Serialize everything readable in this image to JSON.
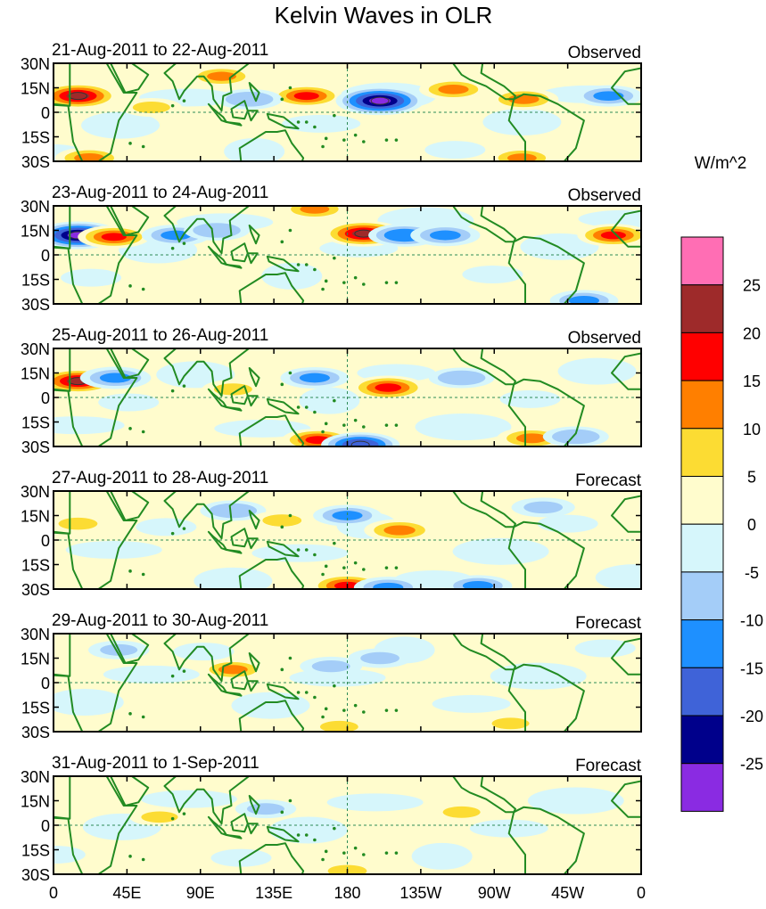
{
  "chart_data": {
    "type": "heatmap",
    "title": "Kelvin Waves in OLR",
    "units": "W/m^2",
    "x_range": [
      0,
      360
    ],
    "y_range": [
      -30,
      30
    ],
    "lon_ticks": [
      {
        "value": 0,
        "label": "0"
      },
      {
        "value": 45,
        "label": "45E"
      },
      {
        "value": 90,
        "label": "90E"
      },
      {
        "value": 135,
        "label": "135E"
      },
      {
        "value": 180,
        "label": "180"
      },
      {
        "value": 225,
        "label": "135W"
      },
      {
        "value": 270,
        "label": "90W"
      },
      {
        "value": 315,
        "label": "45W"
      },
      {
        "value": 360,
        "label": "0"
      }
    ],
    "lat_ticks": [
      {
        "value": 30,
        "label": "30N"
      },
      {
        "value": 15,
        "label": "15N"
      },
      {
        "value": 0,
        "label": "0"
      },
      {
        "value": -15,
        "label": "15S"
      },
      {
        "value": -30,
        "label": "30S"
      }
    ],
    "colorbar": {
      "colors": [
        "#8a2be2",
        "#00008b",
        "#3f63d8",
        "#1e90ff",
        "#a4cdf8",
        "#d6f6fb",
        "#fffccd",
        "#fcdc33",
        "#ff7f00",
        "#ff0000",
        "#9e2a2a",
        "#ff6eb4"
      ],
      "labels": [
        "25",
        "20",
        "15",
        "10",
        "5",
        "0",
        "-5",
        "-10",
        "-15",
        "-20",
        "-25"
      ]
    },
    "panels": [
      {
        "period": "21-Aug-2011 to 22-Aug-2011",
        "kind": "Observed",
        "features": [
          {
            "lon": 15,
            "lat": 10,
            "value": 22
          },
          {
            "lon": 22,
            "lat": -28,
            "value": 12
          },
          {
            "lon": 103,
            "lat": 22,
            "value": 10
          },
          {
            "lon": 155,
            "lat": 10,
            "value": 15
          },
          {
            "lon": 200,
            "lat": 7,
            "value": -28
          },
          {
            "lon": 245,
            "lat": 14,
            "value": 12
          },
          {
            "lon": 288,
            "lat": 8,
            "value": 13
          },
          {
            "lon": 287,
            "lat": -28,
            "value": 10
          },
          {
            "lon": 340,
            "lat": 10,
            "value": -12
          },
          {
            "lon": 120,
            "lat": 8,
            "value": -10
          },
          {
            "lon": 60,
            "lat": 3,
            "value": 6
          }
        ]
      },
      {
        "period": "23-Aug-2011 to 24-Aug-2011",
        "kind": "Observed",
        "features": [
          {
            "lon": 15,
            "lat": 12,
            "value": -26
          },
          {
            "lon": 37,
            "lat": 11,
            "value": 15
          },
          {
            "lon": 75,
            "lat": 12,
            "value": -12
          },
          {
            "lon": 100,
            "lat": 15,
            "value": -10
          },
          {
            "lon": 190,
            "lat": 13,
            "value": 22
          },
          {
            "lon": 215,
            "lat": 12,
            "value": -15
          },
          {
            "lon": 240,
            "lat": 12,
            "value": -13
          },
          {
            "lon": 343,
            "lat": 12,
            "value": 15
          },
          {
            "lon": 160,
            "lat": 28,
            "value": 10
          },
          {
            "lon": 325,
            "lat": -28,
            "value": -12
          }
        ]
      },
      {
        "period": "25-Aug-2011 to 26-Aug-2011",
        "kind": "Observed",
        "features": [
          {
            "lon": 15,
            "lat": 10,
            "value": 20
          },
          {
            "lon": 38,
            "lat": 12,
            "value": -14
          },
          {
            "lon": 110,
            "lat": 5,
            "value": 7
          },
          {
            "lon": 162,
            "lat": -26,
            "value": 15
          },
          {
            "lon": 188,
            "lat": -29,
            "value": -20
          },
          {
            "lon": 205,
            "lat": 6,
            "value": 18
          },
          {
            "lon": 250,
            "lat": 12,
            "value": -10
          },
          {
            "lon": 293,
            "lat": -25,
            "value": 13
          },
          {
            "lon": 320,
            "lat": -24,
            "value": -10
          },
          {
            "lon": 160,
            "lat": 12,
            "value": -12
          }
        ]
      },
      {
        "period": "27-Aug-2011 to 28-Aug-2011",
        "kind": "Forecast",
        "features": [
          {
            "lon": 15,
            "lat": 10,
            "value": 8
          },
          {
            "lon": 110,
            "lat": 18,
            "value": -10
          },
          {
            "lon": 140,
            "lat": 12,
            "value": 8
          },
          {
            "lon": 180,
            "lat": -28,
            "value": 17
          },
          {
            "lon": 205,
            "lat": -29,
            "value": -12
          },
          {
            "lon": 212,
            "lat": 6,
            "value": 14
          },
          {
            "lon": 180,
            "lat": 15,
            "value": -12
          },
          {
            "lon": 260,
            "lat": -28,
            "value": -12
          },
          {
            "lon": 300,
            "lat": 20,
            "value": -8
          }
        ]
      },
      {
        "period": "29-Aug-2011 to 30-Aug-2011",
        "kind": "Forecast",
        "features": [
          {
            "lon": 110,
            "lat": 8,
            "value": 10
          },
          {
            "lon": 175,
            "lat": -27,
            "value": 7
          },
          {
            "lon": 170,
            "lat": 10,
            "value": -7
          },
          {
            "lon": 200,
            "lat": 15,
            "value": -8
          },
          {
            "lon": 280,
            "lat": -25,
            "value": 6
          },
          {
            "lon": 40,
            "lat": 20,
            "value": -6
          }
        ]
      },
      {
        "period": "31-Aug-2011 to 1-Sep-2011",
        "kind": "Forecast",
        "features": [
          {
            "lon": 180,
            "lat": -28,
            "value": 8
          },
          {
            "lon": 250,
            "lat": 8,
            "value": 6
          },
          {
            "lon": 65,
            "lat": 5,
            "value": 5
          },
          {
            "lon": 130,
            "lat": 10,
            "value": -6
          }
        ]
      }
    ]
  }
}
